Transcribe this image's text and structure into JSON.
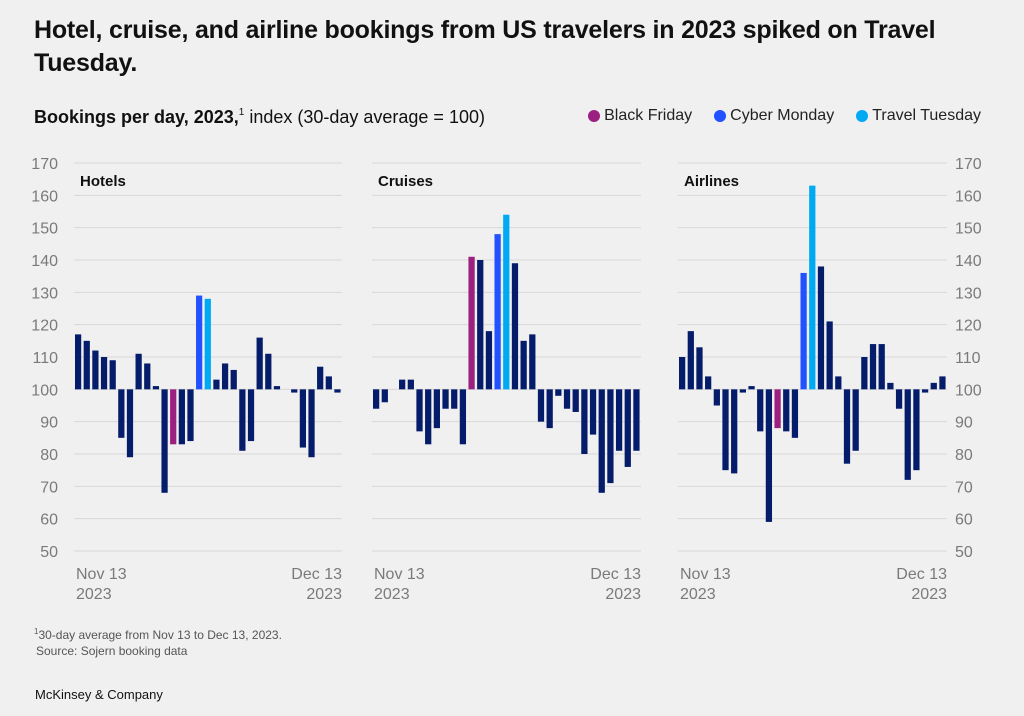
{
  "title": "Hotel, cruise, and airline bookings from US travelers in 2023 spiked on Travel Tuesday.",
  "subtitle": {
    "bold": "Bookings per day, 2023,",
    "footnote_mark": "1",
    "rest": " index (30-day average = 100)"
  },
  "legend": [
    {
      "label": "Black Friday",
      "color": "#9b2080"
    },
    {
      "label": "Cyber Monday",
      "color": "#2251ff"
    },
    {
      "label": "Travel Tuesday",
      "color": "#00a9f4"
    }
  ],
  "colors": {
    "default_bar": "#051c6b",
    "black_friday": "#9b2080",
    "cyber_monday": "#2251ff",
    "travel_tuesday": "#00a9f4",
    "grid": "#d8d8d8",
    "tick_text": "#7a7a7a"
  },
  "footnote": {
    "mark": "1",
    "line1": "30-day average from Nov 13 to Dec 13, 2023.",
    "line2": "Source: Sojern booking data"
  },
  "brand": "McKinsey & Company",
  "chart_data": [
    {
      "type": "bar",
      "title": "Hotels",
      "xlabel_start": [
        "Nov 13",
        "2023"
      ],
      "xlabel_end": [
        "Dec 13",
        "2023"
      ],
      "baseline": 100,
      "ylim": [
        50,
        170
      ],
      "yticks": [
        50,
        60,
        70,
        80,
        90,
        100,
        110,
        120,
        130,
        140,
        150,
        160,
        170
      ],
      "y_axis_side": "left",
      "grid": true,
      "highlights": {
        "black_friday": 11,
        "cyber_monday": 14,
        "travel_tuesday": 15
      },
      "values": [
        117,
        115,
        112,
        110,
        109,
        85,
        79,
        111,
        108,
        101,
        68,
        83,
        83,
        84,
        129,
        128,
        103,
        108,
        106,
        81,
        84,
        116,
        111,
        101,
        100,
        99,
        82,
        79,
        107,
        104,
        99
      ]
    },
    {
      "type": "bar",
      "title": "Cruises",
      "xlabel_start": [
        "Nov 13",
        "2023"
      ],
      "xlabel_end": [
        "Dec 13",
        "2023"
      ],
      "baseline": 100,
      "ylim": [
        50,
        170
      ],
      "grid": true,
      "highlights": {
        "black_friday": 11,
        "cyber_monday": 14,
        "travel_tuesday": 15
      },
      "values": [
        94,
        96,
        100,
        103,
        103,
        87,
        83,
        88,
        94,
        94,
        83,
        141,
        140,
        118,
        148,
        154,
        139,
        115,
        117,
        90,
        88,
        98,
        94,
        93,
        80,
        86,
        68,
        71,
        81,
        76,
        81
      ]
    },
    {
      "type": "bar",
      "title": "Airlines",
      "xlabel_start": [
        "Nov 13",
        "2023"
      ],
      "xlabel_end": [
        "Dec 13",
        "2023"
      ],
      "baseline": 100,
      "ylim": [
        50,
        170
      ],
      "yticks": [
        50,
        60,
        70,
        80,
        90,
        100,
        110,
        120,
        130,
        140,
        150,
        160,
        170
      ],
      "y_axis_side": "right",
      "grid": true,
      "highlights": {
        "black_friday": 11,
        "cyber_monday": 14,
        "travel_tuesday": 15
      },
      "values": [
        110,
        118,
        113,
        104,
        95,
        75,
        74,
        99,
        101,
        87,
        59,
        88,
        87,
        85,
        136,
        163,
        138,
        121,
        104,
        77,
        81,
        110,
        114,
        114,
        102,
        94,
        72,
        75,
        99,
        102,
        104
      ]
    }
  ]
}
